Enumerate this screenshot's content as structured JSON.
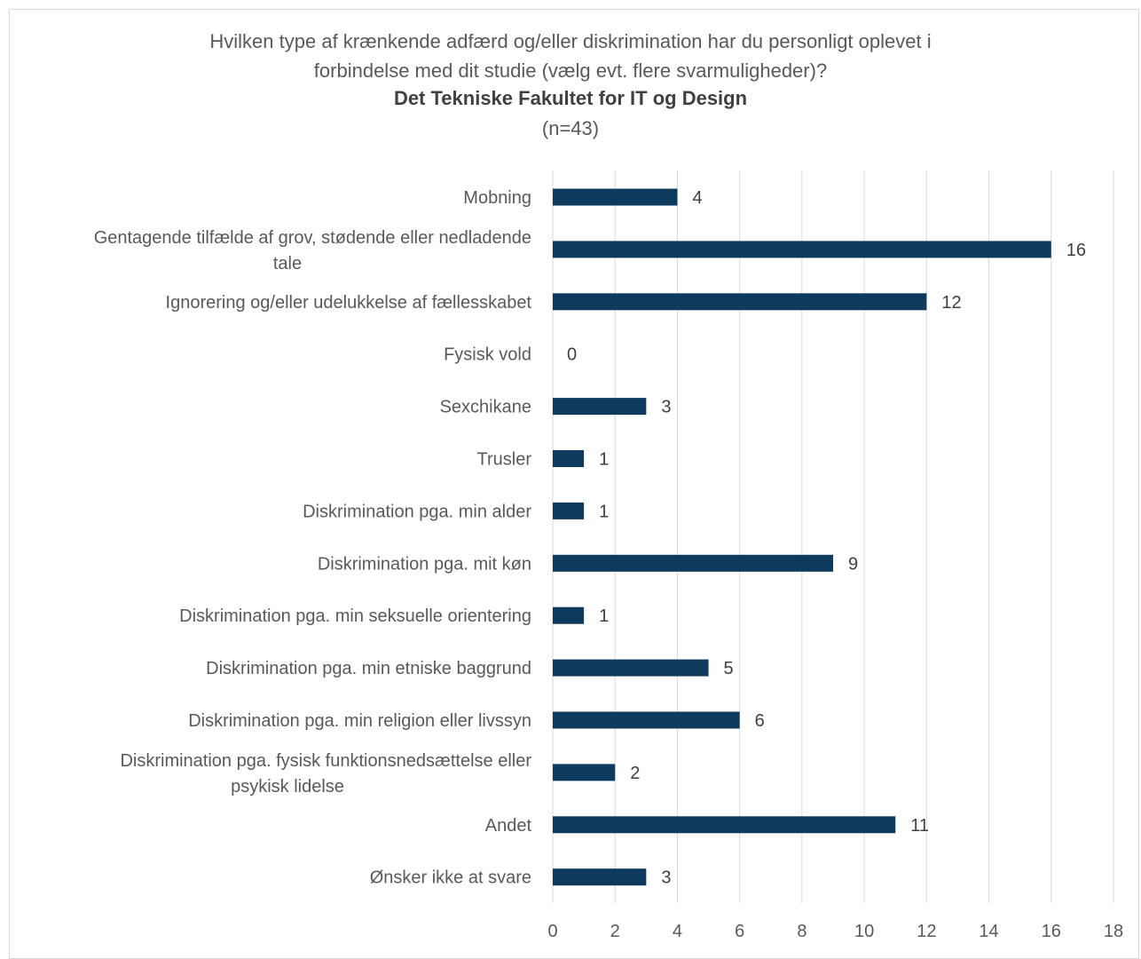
{
  "chart_data": {
    "type": "bar",
    "orientation": "horizontal",
    "title_lines": [
      "Hvilken type af krænkende adfærd og/eller diskrimination har du personligt oplevet i",
      "forbindelse med dit studie (vælg evt. flere svarmuligheder)?"
    ],
    "subtitle": "Det Tekniske Fakultet for IT og Design",
    "note": "(n=43)",
    "categories": [
      [
        "Mobning"
      ],
      [
        "Gentagende tilfælde af grov, stødende eller nedladende",
        "tale"
      ],
      [
        "Ignorering og/eller udelukkelse af fællesskabet"
      ],
      [
        "Fysisk vold"
      ],
      [
        "Sexchikane"
      ],
      [
        "Trusler"
      ],
      [
        "Diskrimination pga. min alder"
      ],
      [
        "Diskrimination pga. mit køn"
      ],
      [
        "Diskrimination pga. min seksuelle orientering"
      ],
      [
        "Diskrimination pga. min etniske baggrund"
      ],
      [
        "Diskrimination pga. min religion eller livssyn"
      ],
      [
        "Diskrimination pga. fysisk funktionsnedsættelse eller",
        "psykisk lidelse"
      ],
      [
        "Andet"
      ],
      [
        "Ønsker ikke at svare"
      ]
    ],
    "values": [
      4,
      16,
      12,
      0,
      3,
      1,
      1,
      9,
      1,
      5,
      6,
      2,
      11,
      3
    ],
    "xlim": [
      0,
      18
    ],
    "xticks": [
      0,
      2,
      4,
      6,
      8,
      10,
      12,
      14,
      16,
      18
    ],
    "grid": true,
    "legend": "none",
    "bar_color": "#0e3a5e",
    "grid_color": "#d9d9d9"
  }
}
